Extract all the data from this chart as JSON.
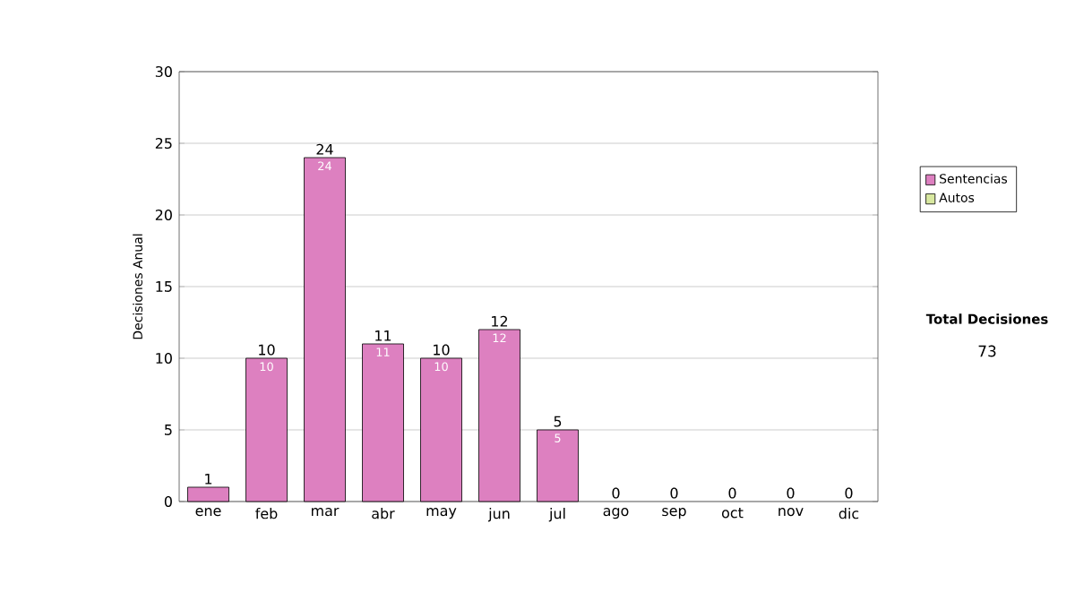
{
  "chart_data": {
    "type": "bar",
    "stacked": true,
    "ylabel": "Decisiones Anual",
    "categories": [
      "ene",
      "feb",
      "mar",
      "abr",
      "may",
      "jun",
      "jul",
      "ago",
      "sep",
      "oct",
      "nov",
      "dic"
    ],
    "series": [
      {
        "name": "Sentencias",
        "color": "#dd80c0",
        "values": [
          1,
          10,
          24,
          11,
          10,
          12,
          5,
          0,
          0,
          0,
          0,
          0
        ],
        "value_labels": [
          null,
          "10",
          "24",
          "11",
          "10",
          "12",
          "5",
          null,
          null,
          null,
          null,
          null
        ]
      },
      {
        "name": "Autos",
        "color": "#d8e8a0",
        "values": [
          0,
          0,
          0,
          0,
          0,
          0,
          0,
          0,
          0,
          0,
          0,
          0
        ]
      }
    ],
    "totals": [
      "1",
      "10",
      "24",
      "11",
      "10",
      "12",
      "5",
      "0",
      "0",
      "0",
      "0",
      "0"
    ],
    "ylim": [
      0,
      30
    ],
    "yticks": [
      0,
      5,
      10,
      15,
      20,
      25,
      30
    ],
    "grid": "y",
    "legend": "right",
    "annotations": [
      "Total Decisiones",
      "73"
    ]
  }
}
